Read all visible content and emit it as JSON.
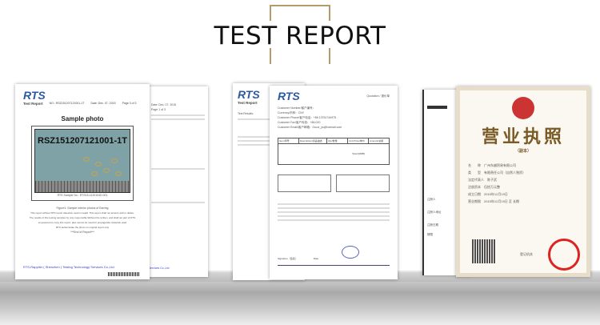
{
  "header": {
    "title": "TEST REPORT",
    "frame_color": "#b59a6a"
  },
  "doc1_back": {
    "date": "Date: Dec. 07, 2015",
    "page": "Page 1 of 3",
    "company": "y Services Co.,Ltd"
  },
  "doc1": {
    "logo": "RTS",
    "subtitle": "Test Report",
    "report_no": "NO.: RSZ151207121001-1T",
    "date": "Date: Dec. 07, 2015",
    "page": "Page 3 of 3",
    "heading": "Sample photo",
    "photo_label": "RSZ151207121001-1T",
    "sample_no": "RTS Sample No.: RTS15-1120104D.001",
    "figure": "Figure1: Sample interior photos of Earring",
    "notes": [
      "This report without RTS report detection seal is invalid. This report shall not amend, add or delete.",
      "The results of this testing samples by only responsible.Without the written, and shall not part of RTS",
      "empowered to copy this report, also cannot be used for propaganda materials used",
      "RTS authenticate the photo on original report only"
    ],
    "end": "***End of Report***",
    "company": "RTS-Rapplier ( Shenzhen ) Testing Technology Services Co.,Ltd"
  },
  "doc2_back": {
    "logo": "RTS",
    "subtitle": "Test Report",
    "results": "Test Results:"
  },
  "doc2": {
    "logo": "RTS",
    "quotation": "Quotation / 报价单",
    "fields": [
      "Customer Number/客户编号：",
      "Currency/币种：CNY",
      "Customer Phone/客户电话：+86 13751744975",
      "Customer Fax/客户传真：+86-020",
      "Customer Email/客户邮箱：Gucci_ys@hotmail.com"
    ],
    "table_headers": [
      "Item/项号",
      "Description/货品描述",
      "Qty/数量",
      "Unit Price/单价",
      "Amount/总额"
    ],
    "total": "Total (RMB)",
    "signature": "Signature（签名）",
    "date_label": "Date"
  },
  "doc3_back": {
    "label1": "注册人",
    "label2": "注册人地址",
    "label3": "注册日期",
    "label4": "期限"
  },
  "doc3": {
    "title": "营业执照",
    "copy": "（副本）",
    "rows": [
      "名　　称　广州东越贸易有限公司",
      "类　　型　有限责任公司（自然人独资）",
      "法定代表人　陈子武",
      "注册资本　伍拾万元整",
      "成立日期　2015年12月19日",
      "营业期限　2015年12月19日 至 长期"
    ],
    "authority": "登记机关"
  }
}
